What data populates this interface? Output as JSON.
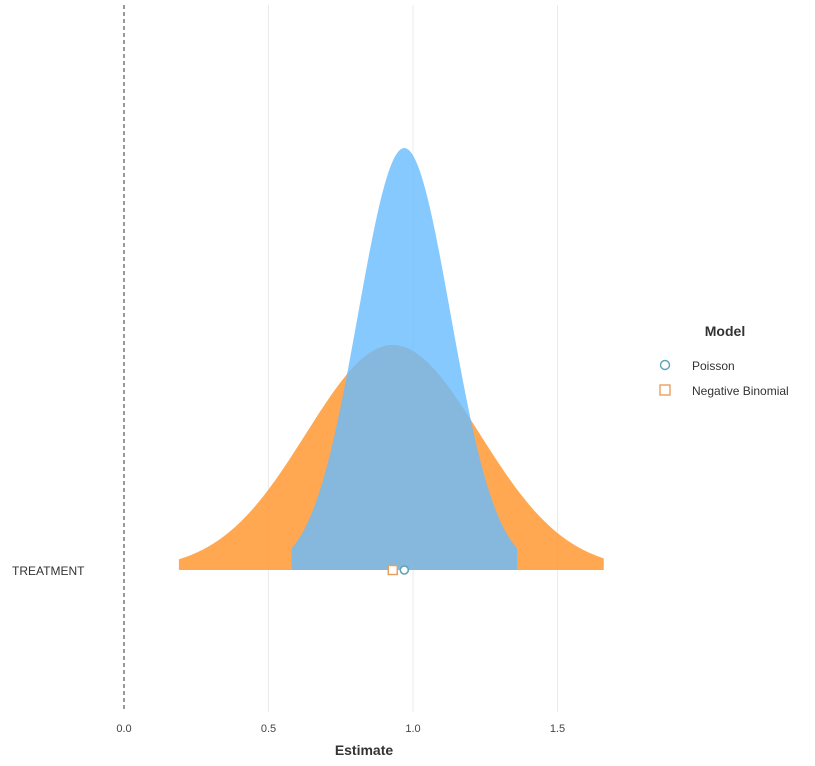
{
  "chart_data": {
    "type": "density",
    "title": "",
    "xlabel": "Estimate",
    "ylabel": "",
    "xlim": [
      0.0,
      1.66
    ],
    "x_ticks": [
      0.0,
      0.5,
      1.0,
      1.5
    ],
    "x_tick_labels": [
      "0.0",
      "0.5",
      "1.0",
      "1.5"
    ],
    "categories": [
      "TREATMENT"
    ],
    "reference_line": {
      "x": 0.0,
      "style": "dashed"
    },
    "grid": {
      "vertical": true,
      "horizontal": false
    },
    "legend": {
      "title": "Model",
      "position": "right"
    },
    "series": [
      {
        "name": "Negative Binomial",
        "category": "TREATMENT",
        "estimate": 0.93,
        "sd": 0.3,
        "range": [
          0.19,
          1.66
        ],
        "color": "#FF9933",
        "marker": "square"
      },
      {
        "name": "Poisson",
        "category": "TREATMENT",
        "estimate": 0.97,
        "sd": 0.16,
        "range": [
          0.58,
          1.36
        ],
        "color": "#66BBFF",
        "marker": "circle"
      }
    ]
  },
  "legend_order": [
    "Poisson",
    "Negative Binomial"
  ],
  "legend_marker_colors": {
    "Poisson": "#5BA3B5",
    "Negative Binomial": "#E8A060"
  }
}
